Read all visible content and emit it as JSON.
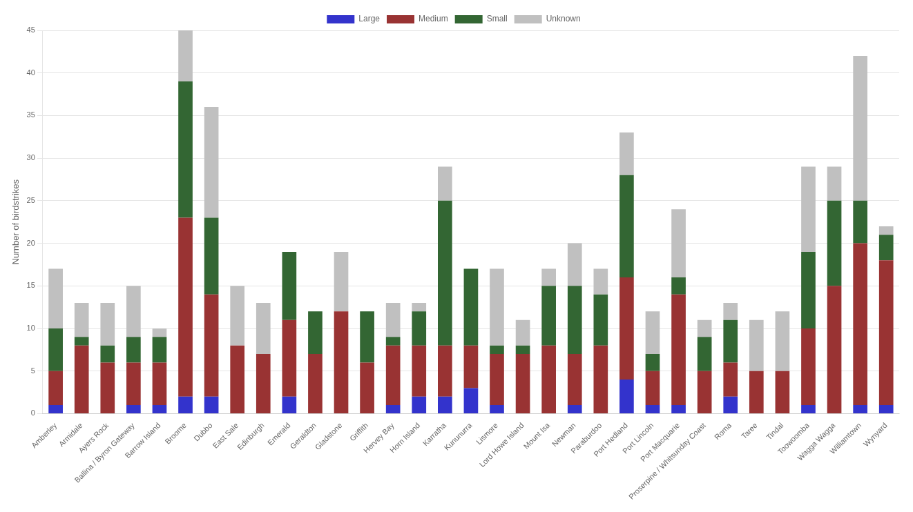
{
  "chart_data": {
    "type": "bar",
    "stacked": true,
    "categories": [
      "Amberley",
      "Armidale",
      "Ayers Rock",
      "Ballina / Byron Gateway",
      "Barrow Island",
      "Broome",
      "Dubbo",
      "East Sale",
      "Edinburgh",
      "Emerald",
      "Geraldton",
      "Gladstone",
      "Griffith",
      "Hervey Bay",
      "Horn Island",
      "Karratha",
      "Kununurra",
      "Lismore",
      "Lord Howe Island",
      "Mount Isa",
      "Newman",
      "Paraburdoo",
      "Port Hedland",
      "Port Lincoln",
      "Port Macquarie",
      "Proserpine / Whitsunday Coast",
      "Roma",
      "Taree",
      "Tindal",
      "Toowoomba",
      "Wagga Wagga",
      "Williamtown",
      "Wynyard"
    ],
    "series": [
      {
        "name": "Large",
        "color": "#3333cc",
        "values": [
          1,
          0,
          0,
          1,
          1,
          2,
          2,
          0,
          0,
          2,
          0,
          0,
          0,
          1,
          2,
          2,
          3,
          1,
          0,
          0,
          1,
          0,
          4,
          1,
          1,
          0,
          2,
          0,
          0,
          1,
          0,
          1,
          1
        ]
      },
      {
        "name": "Medium",
        "color": "#993333",
        "values": [
          4,
          8,
          6,
          5,
          5,
          21,
          12,
          8,
          7,
          9,
          7,
          12,
          6,
          7,
          6,
          6,
          5,
          6,
          7,
          8,
          6,
          8,
          12,
          4,
          13,
          5,
          4,
          5,
          5,
          9,
          15,
          19,
          17
        ]
      },
      {
        "name": "Small",
        "color": "#336633",
        "values": [
          5,
          1,
          2,
          3,
          3,
          16,
          9,
          0,
          0,
          8,
          5,
          0,
          6,
          1,
          4,
          17,
          9,
          1,
          1,
          7,
          8,
          6,
          12,
          2,
          2,
          4,
          5,
          0,
          0,
          9,
          10,
          5,
          3
        ]
      },
      {
        "name": "Unknown",
        "color": "#c0c0c0",
        "values": [
          7,
          4,
          5,
          6,
          1,
          6,
          13,
          7,
          6,
          0,
          0,
          7,
          0,
          4,
          1,
          4,
          0,
          9,
          3,
          2,
          5,
          3,
          5,
          5,
          8,
          2,
          2,
          6,
          7,
          10,
          4,
          17,
          1
        ]
      }
    ],
    "ylabel": "Number of birdstrikes",
    "ylim": [
      0,
      45
    ],
    "yticks": [
      0,
      5,
      10,
      15,
      20,
      25,
      30,
      35,
      40,
      45
    ],
    "grid": true,
    "legend": "top"
  }
}
